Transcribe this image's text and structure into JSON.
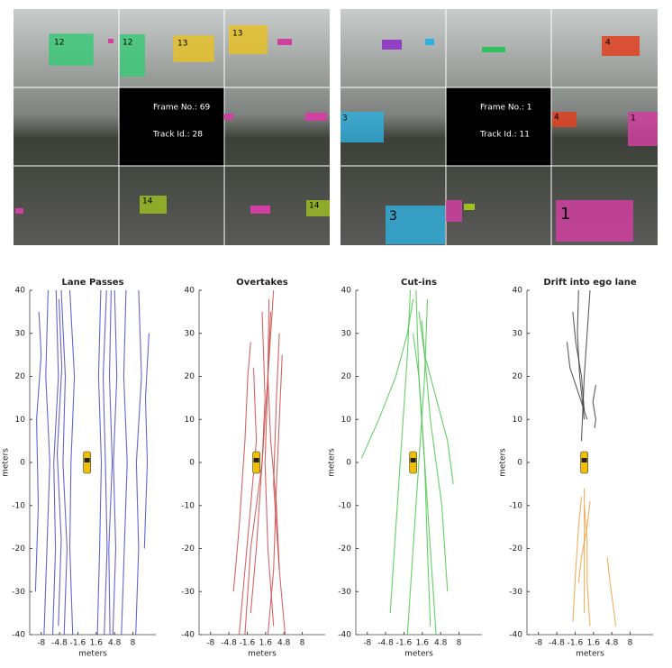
{
  "camera_views": [
    {
      "frame": "Frame No.: 69",
      "track": "Track Id.: 28",
      "box_labels": [
        "12",
        "12",
        "13",
        "13",
        "14",
        "14"
      ]
    },
    {
      "frame": "Frame No.: 1",
      "track": "Track Id.: 11",
      "box_labels": [
        "4",
        "3",
        "4",
        "1",
        "3",
        "1"
      ]
    }
  ],
  "chart_data": [
    {
      "type": "line",
      "title": "Lane Passes",
      "xlabel": "meters",
      "ylabel": "meters",
      "xlim": [
        -10,
        12
      ],
      "ylim": [
        -40,
        40
      ],
      "xticks": [
        -8,
        -4.8,
        -1.6,
        1.6,
        4.8,
        8
      ],
      "yticks": [
        -40,
        -30,
        -20,
        -10,
        0,
        10,
        20,
        30,
        40
      ],
      "series": [
        {
          "color": "#4a4ac8",
          "x": [
            -6,
            -5.5,
            -5.8,
            -5,
            -5.4
          ],
          "values": [
            -40,
            -20,
            0,
            20,
            40
          ]
        },
        {
          "color": "#4a4ac8",
          "x": [
            -4,
            -3.5,
            -4.2,
            -3.8,
            -4.5
          ],
          "values": [
            -40,
            -20,
            0,
            20,
            40
          ]
        },
        {
          "color": "#4a4ac8",
          "x": [
            -7.5,
            -7,
            -6.5,
            -7.2,
            -6.8
          ],
          "values": [
            -40,
            -20,
            0,
            20,
            40
          ]
        },
        {
          "color": "#4a4ac8",
          "x": [
            -2.5,
            -3,
            -2.8,
            -2.2,
            -3
          ],
          "values": [
            -40,
            -20,
            0,
            20,
            40
          ]
        },
        {
          "color": "#4a4ac8",
          "x": [
            -5,
            -4.5,
            -5.2,
            -4.4,
            -4.9
          ],
          "values": [
            -38,
            -18,
            2,
            22,
            38
          ]
        },
        {
          "color": "#4a4ac8",
          "x": [
            3,
            3.5,
            3.2,
            2.8,
            3.4
          ],
          "values": [
            -40,
            -20,
            0,
            20,
            40
          ]
        },
        {
          "color": "#4a4ac8",
          "x": [
            4.5,
            5,
            4.6,
            5.2,
            4.8
          ],
          "values": [
            -40,
            -20,
            0,
            20,
            40
          ]
        },
        {
          "color": "#4a4ac8",
          "x": [
            6,
            6.5,
            7,
            6.4,
            6.8
          ],
          "values": [
            -40,
            -20,
            0,
            20,
            40
          ]
        },
        {
          "color": "#4a4ac8",
          "x": [
            8.5,
            9,
            8.6,
            9.5,
            9
          ],
          "values": [
            -40,
            -20,
            0,
            20,
            40
          ]
        },
        {
          "color": "#4a4ac8",
          "x": [
            1.8,
            2.2,
            2.5,
            2,
            2.4
          ],
          "values": [
            -40,
            -20,
            0,
            20,
            40
          ]
        },
        {
          "color": "#4a4ac8",
          "x": [
            -9,
            -8.5,
            -8.8,
            -8,
            -8.4
          ],
          "values": [
            -30,
            -10,
            10,
            25,
            35
          ]
        },
        {
          "color": "#4a4ac8",
          "x": [
            10,
            10.5,
            10.2,
            10.8
          ],
          "values": [
            -20,
            0,
            15,
            30
          ]
        },
        {
          "color": "#4a4ac8",
          "x": [
            4,
            3.8,
            4.4,
            3.9,
            4.2
          ],
          "values": [
            -40,
            -20,
            0,
            20,
            40
          ]
        }
      ]
    },
    {
      "type": "line",
      "title": "Overtakes",
      "xlabel": "meters",
      "xlim": [
        -10,
        12
      ],
      "ylim": [
        -40,
        40
      ],
      "xticks": [
        -8,
        -4.8,
        -1.6,
        1.6,
        4.8,
        8
      ],
      "yticks": [
        -40,
        -30,
        -20,
        -10,
        0,
        10,
        20,
        30,
        40
      ],
      "series": [
        {
          "color": "#cc4a4a",
          "x": [
            -2,
            -1,
            1,
            2,
            2.5
          ],
          "values": [
            -40,
            -20,
            0,
            20,
            35
          ]
        },
        {
          "color": "#cc4a4a",
          "x": [
            3,
            2,
            1.5,
            2,
            3
          ],
          "values": [
            -38,
            -20,
            0,
            20,
            40
          ]
        },
        {
          "color": "#cc4a4a",
          "x": [
            -4,
            -3,
            -2,
            -1.5,
            -1
          ],
          "values": [
            -30,
            -15,
            5,
            20,
            28
          ]
        },
        {
          "color": "#cc4a4a",
          "x": [
            5,
            4,
            3,
            3.5,
            4
          ],
          "values": [
            -40,
            -25,
            -5,
            15,
            30
          ]
        },
        {
          "color": "#cc4a4a",
          "x": [
            -1,
            0,
            1,
            1.5,
            1
          ],
          "values": [
            -35,
            -20,
            0,
            15,
            35
          ]
        },
        {
          "color": "#cc4a4a",
          "x": [
            4,
            3.5,
            2.5,
            2,
            2.2
          ],
          "values": [
            -25,
            -10,
            5,
            20,
            38
          ]
        },
        {
          "color": "#cc4a4a",
          "x": [
            -3,
            -2,
            -1,
            0,
            -0.5
          ],
          "values": [
            -40,
            -25,
            -10,
            5,
            22
          ]
        },
        {
          "color": "#cc4a4a",
          "x": [
            2,
            3,
            3.5,
            4,
            4.5
          ],
          "values": [
            -40,
            -25,
            -5,
            10,
            25
          ]
        }
      ]
    },
    {
      "type": "line",
      "title": "Cut-ins",
      "xlabel": "meters",
      "ylabel": "meters",
      "xlim": [
        -10,
        12
      ],
      "ylim": [
        -40,
        40
      ],
      "xticks": [
        -8,
        -4.8,
        -1.6,
        1.6,
        4.8,
        8
      ],
      "yticks": [
        -40,
        -30,
        -20,
        -10,
        0,
        10,
        20,
        30,
        40
      ],
      "series": [
        {
          "color": "#4ac84a",
          "x": [
            -9,
            -6,
            -3,
            -1,
            0
          ],
          "values": [
            1,
            10,
            20,
            30,
            38
          ]
        },
        {
          "color": "#4ac84a",
          "x": [
            4,
            3,
            2,
            1,
            0.5
          ],
          "values": [
            -40,
            -20,
            0,
            20,
            40
          ]
        },
        {
          "color": "#4ac84a",
          "x": [
            -4,
            -3,
            -2,
            -1,
            -0.5
          ],
          "values": [
            -35,
            -15,
            5,
            25,
            40
          ]
        },
        {
          "color": "#4ac84a",
          "x": [
            6,
            5,
            3,
            2,
            1
          ],
          "values": [
            -30,
            -10,
            10,
            25,
            35
          ]
        },
        {
          "color": "#4ac84a",
          "x": [
            -1,
            0,
            1,
            2,
            2.5
          ],
          "values": [
            -40,
            -20,
            0,
            20,
            38
          ]
        },
        {
          "color": "#4ac84a",
          "x": [
            7,
            6,
            4,
            2,
            1.5
          ],
          "values": [
            -5,
            5,
            15,
            25,
            33
          ]
        },
        {
          "color": "#4ac84a",
          "x": [
            3,
            2.5,
            2,
            1,
            0
          ],
          "values": [
            -38,
            -20,
            0,
            20,
            30
          ]
        }
      ]
    },
    {
      "type": "line",
      "title": "Drift into ego lane",
      "xlabel": "meters",
      "ylabel": "meters",
      "xlim": [
        -10,
        12
      ],
      "ylim": [
        -40,
        40
      ],
      "xticks": [
        -8,
        -4.8,
        -1.6,
        1.6,
        4.8,
        8
      ],
      "yticks": [
        -40,
        -30,
        -20,
        -10,
        0,
        10,
        20,
        30,
        40
      ],
      "series": [
        {
          "color": "#404040",
          "x": [
            -2,
            -1.5,
            -0.5,
            0
          ],
          "values": [
            35,
            28,
            20,
            12
          ]
        },
        {
          "color": "#404040",
          "x": [
            -3,
            -2.5,
            -1,
            0.5
          ],
          "values": [
            28,
            22,
            16,
            10
          ]
        },
        {
          "color": "#404040",
          "x": [
            1,
            0.5,
            0,
            -0.5
          ],
          "values": [
            40,
            30,
            20,
            5
          ]
        },
        {
          "color": "#404040",
          "x": [
            -1,
            -1.2,
            -0.8,
            0
          ],
          "values": [
            40,
            30,
            20,
            10
          ]
        },
        {
          "color": "#404040",
          "x": [
            2,
            1.5,
            2,
            1.8
          ],
          "values": [
            18,
            14,
            10,
            8
          ]
        },
        {
          "color": "#f0a040",
          "x": [
            -2,
            -1.5,
            -1,
            -0.5
          ],
          "values": [
            -37,
            -25,
            -15,
            -8
          ]
        },
        {
          "color": "#f0a040",
          "x": [
            0,
            0,
            0,
            0
          ],
          "values": [
            -35,
            -25,
            -15,
            -6
          ]
        },
        {
          "color": "#f0a040",
          "x": [
            1,
            0.5,
            0.5,
            0
          ],
          "values": [
            -38,
            -28,
            -18,
            -10
          ]
        },
        {
          "color": "#f0a040",
          "x": [
            4,
            4.5,
            5,
            5.5
          ],
          "values": [
            -22,
            -28,
            -33,
            -38
          ]
        },
        {
          "color": "#f0a040",
          "x": [
            -1,
            -0.5,
            0.5,
            1
          ],
          "values": [
            -28,
            -22,
            -15,
            -9
          ]
        }
      ]
    }
  ]
}
